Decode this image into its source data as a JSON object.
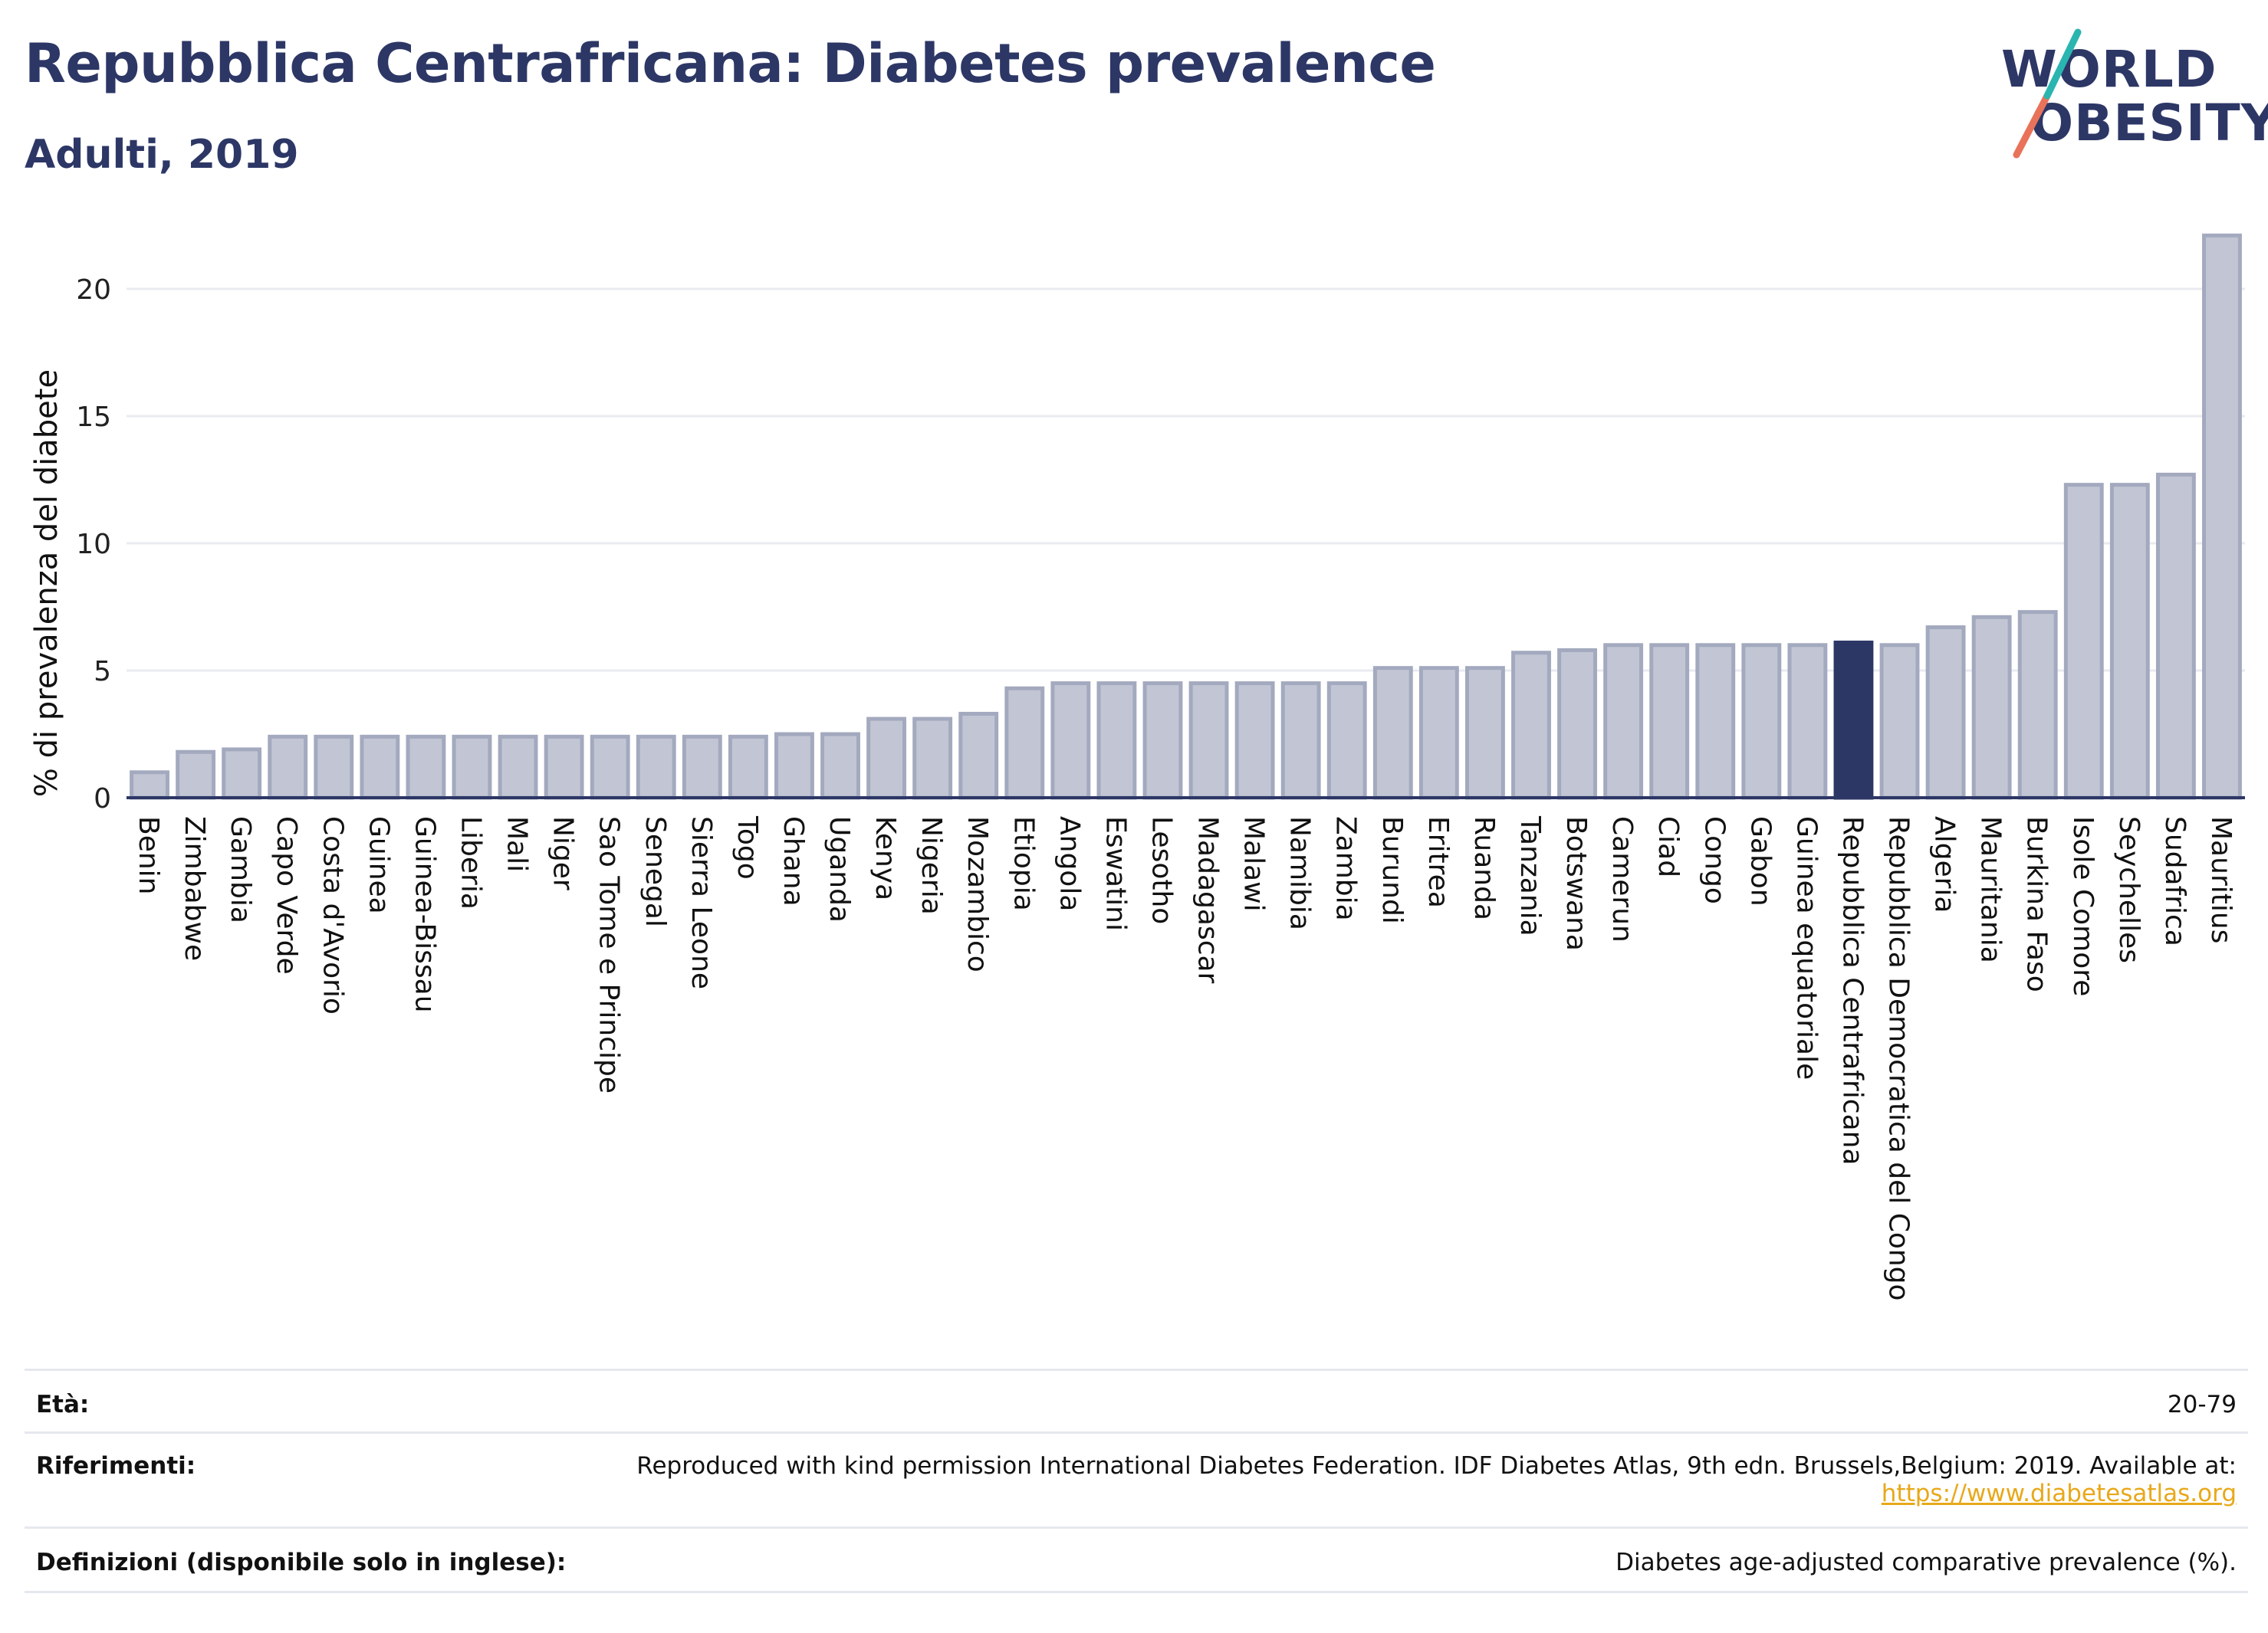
{
  "header": {
    "title": "Repubblica Centrafricana: Diabetes prevalence",
    "subtitle": "Adulti, 2019"
  },
  "logo": {
    "line1": "WORLD",
    "line2": "OBESITY",
    "accent_colors": [
      "#e8735a",
      "#2bb5b0"
    ]
  },
  "chart_data": {
    "type": "bar",
    "title": "",
    "xlabel": "",
    "ylabel": "% di prevalenza del diabete",
    "ylim": [
      0,
      22.5
    ],
    "yticks": [
      0,
      5,
      10,
      15,
      20
    ],
    "grid": true,
    "highlight": "Repubblica Centrafricana",
    "colors": {
      "bar": "#c2c6d4",
      "bar_border": "#a3a9be",
      "highlight": "#2d3766"
    },
    "categories": [
      "Benin",
      "Zimbabwe",
      "Gambia",
      "Capo Verde",
      "Costa d'Avorio",
      "Guinea",
      "Guinea-Bissau",
      "Liberia",
      "Mali",
      "Niger",
      "Sao Tome e Principe",
      "Senegal",
      "Sierra Leone",
      "Togo",
      "Ghana",
      "Uganda",
      "Kenya",
      "Nigeria",
      "Mozambico",
      "Etiopia",
      "Angola",
      "Eswatini",
      "Lesotho",
      "Madagascar",
      "Malawi",
      "Namibia",
      "Zambia",
      "Burundi",
      "Eritrea",
      "Ruanda",
      "Tanzania",
      "Botswana",
      "Camerun",
      "Ciad",
      "Congo",
      "Gabon",
      "Guinea equatoriale",
      "Repubblica Centrafricana",
      "Repubblica Democratica del Congo",
      "Algeria",
      "Mauritania",
      "Burkina Faso",
      "Isole Comore",
      "Seychelles",
      "Sudafrica",
      "Mauritius"
    ],
    "values": [
      1.0,
      1.8,
      1.9,
      2.4,
      2.4,
      2.4,
      2.4,
      2.4,
      2.4,
      2.4,
      2.4,
      2.4,
      2.4,
      2.4,
      2.5,
      2.5,
      3.1,
      3.1,
      3.3,
      4.3,
      4.5,
      4.5,
      4.5,
      4.5,
      4.5,
      4.5,
      4.5,
      5.1,
      5.1,
      5.1,
      5.7,
      5.8,
      6.0,
      6.0,
      6.0,
      6.0,
      6.0,
      6.1,
      6.0,
      6.7,
      7.1,
      7.3,
      12.3,
      12.3,
      12.7,
      22.1
    ]
  },
  "meta": {
    "age_label": "Età:",
    "age_value": "20-79",
    "refs_label": "Riferimenti:",
    "refs_text": "Reproduced with kind permission International Diabetes Federation. IDF Diabetes Atlas, 9th edn. Brussels,Belgium: 2019. Available at:",
    "refs_link": "https://www.diabetesatlas.org",
    "defs_label": "Definizioni (disponibile solo in inglese):",
    "defs_value": "Diabetes age-adjusted comparative prevalence (%)."
  }
}
